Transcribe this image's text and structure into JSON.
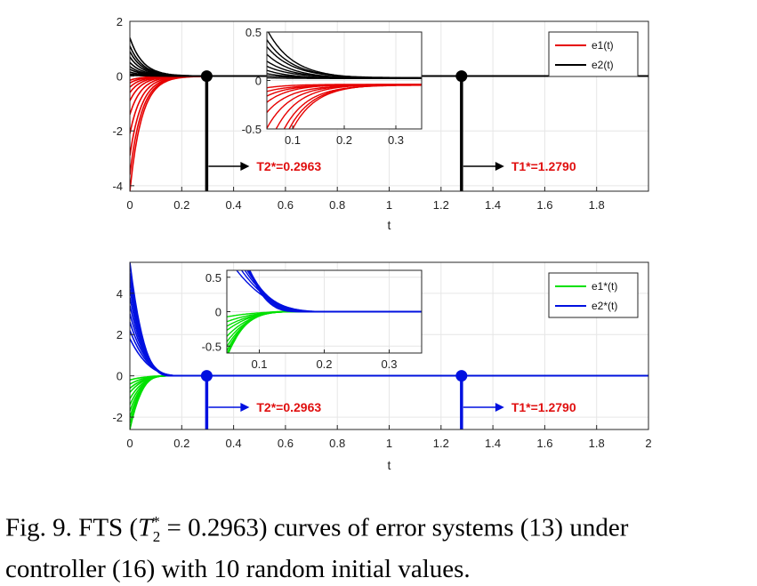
{
  "caption": {
    "line1": "Fig. 9. FTS (T*2 = 0.2963) curves of error systems (13) under",
    "line2": "controller (16) with 10 random initial values."
  },
  "chart_data": [
    {
      "type": "line",
      "panel": "top",
      "xlabel": "t",
      "xlim": [
        0,
        2
      ],
      "ylim": [
        -4.2,
        2
      ],
      "xticks": [
        0,
        0.2,
        0.4,
        0.6,
        0.8,
        1,
        1.2,
        1.4,
        1.6,
        1.8
      ],
      "yticks": [
        -4,
        -2,
        0,
        2
      ],
      "grid": true,
      "legend": {
        "position": "top-right",
        "entries": [
          {
            "label": "e1(t)",
            "color": "#e60000"
          },
          {
            "label": "e2(t)",
            "color": "#000000"
          }
        ]
      },
      "series": [
        {
          "name": "e1(t)",
          "color": "#e60000",
          "initial_values": [
            -4.2,
            -3.6,
            -2.9,
            -2.1,
            -1.4,
            -0.9,
            -0.6,
            -0.4,
            -0.25,
            -0.15
          ],
          "decay": 22
        },
        {
          "name": "e2(t)",
          "color": "#000000",
          "initial_values": [
            1.4,
            1.1,
            0.9,
            0.7,
            0.5,
            0.35,
            0.25,
            0.15,
            0.08,
            0.04
          ],
          "decay": 20
        }
      ],
      "settling_markers": [
        {
          "t": 0.2963,
          "label": "T2*=0.2963",
          "color": "#000000"
        },
        {
          "t": 1.279,
          "label": "T1*=1.2790",
          "color": "#000000"
        }
      ],
      "inset": {
        "xlim": [
          0.05,
          0.35
        ],
        "ylim": [
          -0.5,
          0.5
        ],
        "xticks": [
          0.1,
          0.2,
          0.3
        ],
        "yticks": [
          -0.5,
          0,
          0.5
        ]
      }
    },
    {
      "type": "line",
      "panel": "bottom",
      "xlabel": "t",
      "xlim": [
        0,
        2
      ],
      "ylim": [
        -2.6,
        5.5
      ],
      "xticks": [
        0,
        0.2,
        0.4,
        0.6,
        0.8,
        1,
        1.2,
        1.4,
        1.6,
        1.8,
        2
      ],
      "yticks": [
        -2,
        0,
        2,
        4
      ],
      "grid": true,
      "legend": {
        "position": "top-right",
        "entries": [
          {
            "label": "e1*(t)",
            "color": "#00e000"
          },
          {
            "label": "e2*(t)",
            "color": "#0010e0"
          }
        ]
      },
      "series": [
        {
          "name": "e1*(t)",
          "color": "#00e000",
          "initial_values": [
            -2.6,
            -2.3,
            -2.0,
            -1.7,
            -1.4,
            -1.1,
            -0.8,
            -0.6,
            -0.4,
            -0.2
          ],
          "settle_t": 0.16
        },
        {
          "name": "e2*(t)",
          "color": "#0010e0",
          "initial_values": [
            5.5,
            5.0,
            4.6,
            4.2,
            3.8,
            3.4,
            3.0,
            2.6,
            2.2,
            1.8
          ],
          "settle_t": 0.19
        }
      ],
      "settling_markers": [
        {
          "t": 0.2963,
          "label": "T2*=0.2963",
          "color": "#0010e0"
        },
        {
          "t": 1.279,
          "label": "T1*=1.2790",
          "color": "#0010e0"
        }
      ],
      "inset": {
        "xlim": [
          0.05,
          0.35
        ],
        "ylim": [
          -0.6,
          0.6
        ],
        "xticks": [
          0.1,
          0.2,
          0.3
        ],
        "yticks": [
          -0.5,
          0,
          0.5
        ]
      }
    }
  ]
}
